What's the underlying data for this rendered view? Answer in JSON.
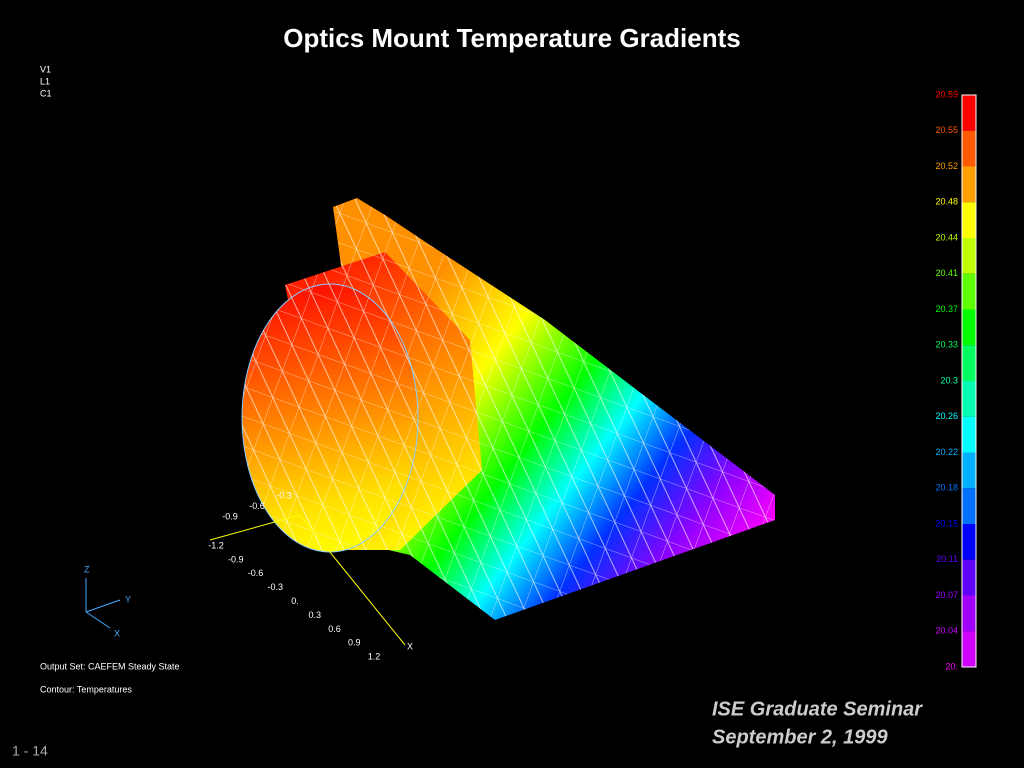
{
  "title": "Optics Mount Temperature Gradients",
  "view_labels": [
    "V1",
    "L1",
    "C1"
  ],
  "legend": {
    "items": [
      {
        "label": "20.59",
        "color": "#ff0000"
      },
      {
        "label": "20.55",
        "color": "#ff5a00"
      },
      {
        "label": "20.52",
        "color": "#ffa000"
      },
      {
        "label": "20.48",
        "color": "#ffff00"
      },
      {
        "label": "20.44",
        "color": "#c0ff00"
      },
      {
        "label": "20.41",
        "color": "#60ff00"
      },
      {
        "label": "20.37",
        "color": "#00ff00"
      },
      {
        "label": "20.33",
        "color": "#00ff60"
      },
      {
        "label": "20.3",
        "color": "#00ffb0"
      },
      {
        "label": "20.26",
        "color": "#00ffff"
      },
      {
        "label": "20.22",
        "color": "#00b0ff"
      },
      {
        "label": "20.18",
        "color": "#0070ff"
      },
      {
        "label": "20.15",
        "color": "#0000ff"
      },
      {
        "label": "20.11",
        "color": "#6000ff"
      },
      {
        "label": "20.07",
        "color": "#a000ff"
      },
      {
        "label": "20.04",
        "color": "#d000ff"
      },
      {
        "label": "20.",
        "color": "#ff00ff"
      }
    ]
  },
  "axes": {
    "x_ticks": [
      "-1.2",
      "-0.9",
      "-0.6",
      "-0.3",
      "0.",
      "0.3",
      "0.6",
      "0.9",
      "1.2"
    ],
    "y_ticks": [
      "-0.9",
      "-0.6",
      "-0.3"
    ],
    "triad": [
      "Z",
      "Y",
      "X"
    ]
  },
  "info": [
    "Output Set: CAEFEM Steady State",
    "Contour: Temperatures"
  ],
  "footer": {
    "lines": [
      "ISE Graduate Seminar",
      "September 2, 1999"
    ],
    "page": "1 - 14"
  }
}
